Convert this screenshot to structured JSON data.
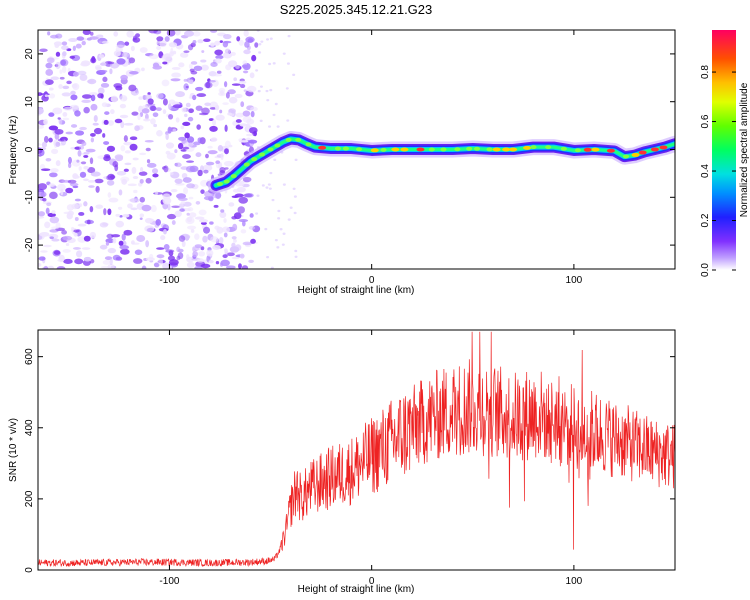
{
  "chart_data": [
    {
      "type": "heatmap",
      "title": "S225.2025.345.12.21.G23",
      "xlabel": "Height of straight line (km)",
      "ylabel": "Frequency (Hz)",
      "xlim": [
        -165,
        150
      ],
      "ylim": [
        -25,
        25
      ],
      "xticks": [
        -100,
        0,
        100
      ],
      "yticks": [
        -20,
        -10,
        0,
        10,
        20
      ],
      "noise_region_x": [
        -165,
        -57
      ],
      "ridge": {
        "x": [
          -77,
          -72,
          -68,
          -64,
          -60,
          -56,
          -52,
          -48,
          -44,
          -40,
          -36,
          -32,
          -28,
          -20,
          -10,
          0,
          10,
          20,
          30,
          40,
          50,
          60,
          70,
          80,
          90,
          100,
          110,
          120,
          125,
          130,
          135,
          140,
          145,
          150
        ],
        "y": [
          -7.5,
          -6.8,
          -5.5,
          -4,
          -2.5,
          -1.5,
          -0.5,
          0.5,
          1.5,
          2.2,
          2,
          1.2,
          0.5,
          0.2,
          0.2,
          -0.2,
          0,
          0,
          0,
          0,
          0.2,
          0,
          0,
          0.5,
          0.5,
          -0.2,
          0,
          -0.3,
          -1.5,
          -1.2,
          -0.5,
          0,
          0.5,
          1.2
        ]
      },
      "colorbar": {
        "label": "Normalized spectral amplitude",
        "ticks": [
          0.0,
          0.2,
          0.4,
          0.6,
          0.8
        ],
        "range": [
          0,
          0.97
        ],
        "colors": [
          "#ffffff",
          "#c0a0ff",
          "#8030ff",
          "#3030ff",
          "#00c0ff",
          "#00ff80",
          "#40ff00",
          "#ffff00",
          "#ffb000",
          "#ff4000",
          "#ff0060"
        ]
      }
    },
    {
      "type": "line",
      "title": "",
      "xlabel": "Height of straight line (km)",
      "ylabel": "SNR (10 * v/v)",
      "xlim": [
        -165,
        150
      ],
      "ylim": [
        0,
        675
      ],
      "xticks": [
        -100,
        0,
        100
      ],
      "yticks": [
        0,
        200,
        400,
        600
      ],
      "series": [
        {
          "name": "SNR",
          "color": "#ee2222",
          "x": [
            -165,
            -140,
            -120,
            -100,
            -80,
            -60,
            -52,
            -48,
            -45,
            -42,
            -40,
            -37,
            -35,
            -30,
            -20,
            -10,
            0,
            10,
            20,
            30,
            40,
            50,
            60,
            70,
            80,
            90,
            100,
            110,
            120,
            130,
            140,
            150
          ],
          "y": [
            20,
            20,
            22,
            22,
            20,
            22,
            25,
            30,
            60,
            120,
            180,
            230,
            200,
            230,
            260,
            280,
            320,
            360,
            400,
            430,
            450,
            460,
            450,
            430,
            440,
            430,
            400,
            390,
            370,
            350,
            330,
            320
          ]
        }
      ]
    }
  ]
}
